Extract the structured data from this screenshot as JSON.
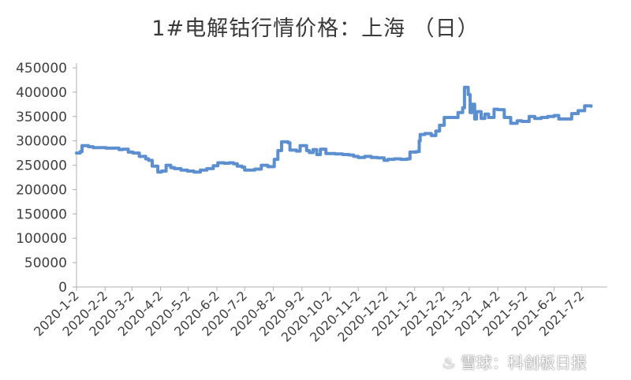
{
  "chart_data": {
    "type": "line",
    "title": "1#电解钴行情价格：上海 （日）",
    "xlabel": "",
    "ylabel": "",
    "ylim": [
      0,
      450000
    ],
    "yticks": [
      "0",
      "50000",
      "100000",
      "150000",
      "200000",
      "250000",
      "300000",
      "350000",
      "400000",
      "450000"
    ],
    "xticks": [
      "2020-1-2",
      "2020-2-2",
      "2020-3-2",
      "2020-4-2",
      "2020-5-2",
      "2020-6-2",
      "2020-7-2",
      "2020-8-2",
      "2020-9-2",
      "2020-10-2",
      "2020-11-2",
      "2020-12-2",
      "2021-1-2",
      "2021-2-2",
      "2021-3-2",
      "2021-4-2",
      "2021-5-2",
      "2021-6-2",
      "2021-7-2"
    ],
    "grid": false,
    "legend": "none",
    "line_color": "#5b8fd0",
    "series": [
      {
        "points": [
          [
            "2020-01-02",
            275000
          ],
          [
            "2020-01-06",
            278000
          ],
          [
            "2020-01-08",
            290000
          ],
          [
            "2020-01-15",
            288000
          ],
          [
            "2020-01-20",
            286000
          ],
          [
            "2020-02-03",
            285000
          ],
          [
            "2020-02-17",
            282000
          ],
          [
            "2020-02-21",
            283000
          ],
          [
            "2020-02-27",
            277000
          ],
          [
            "2020-03-03",
            275000
          ],
          [
            "2020-03-10",
            268000
          ],
          [
            "2020-03-17",
            263000
          ],
          [
            "2020-03-20",
            260000
          ],
          [
            "2020-03-24",
            248000
          ],
          [
            "2020-03-30",
            236000
          ],
          [
            "2020-04-03",
            238000
          ],
          [
            "2020-04-08",
            250000
          ],
          [
            "2020-04-13",
            245000
          ],
          [
            "2020-04-17",
            243000
          ],
          [
            "2020-04-24",
            240000
          ],
          [
            "2020-05-01",
            238000
          ],
          [
            "2020-05-08",
            236000
          ],
          [
            "2020-05-15",
            240000
          ],
          [
            "2020-05-22",
            243000
          ],
          [
            "2020-05-29",
            249000
          ],
          [
            "2020-06-03",
            255000
          ],
          [
            "2020-06-10",
            254000
          ],
          [
            "2020-06-15",
            255000
          ],
          [
            "2020-06-20",
            253000
          ],
          [
            "2020-06-24",
            248000
          ],
          [
            "2020-06-29",
            246000
          ],
          [
            "2020-07-02",
            240000
          ],
          [
            "2020-07-09",
            240000
          ],
          [
            "2020-07-13",
            242000
          ],
          [
            "2020-07-20",
            250000
          ],
          [
            "2020-07-27",
            247000
          ],
          [
            "2020-08-03",
            262000
          ],
          [
            "2020-08-07",
            280000
          ],
          [
            "2020-08-11",
            298000
          ],
          [
            "2020-08-18",
            296000
          ],
          [
            "2020-08-20",
            281000
          ],
          [
            "2020-08-27",
            279000
          ],
          [
            "2020-08-31",
            290000
          ],
          [
            "2020-09-07",
            280000
          ],
          [
            "2020-09-10",
            276000
          ],
          [
            "2020-09-14",
            282000
          ],
          [
            "2020-09-18",
            272000
          ],
          [
            "2020-09-22",
            283000
          ],
          [
            "2020-09-28",
            274000
          ],
          [
            "2020-10-08",
            273000
          ],
          [
            "2020-10-16",
            272000
          ],
          [
            "2020-10-23",
            271000
          ],
          [
            "2020-10-28",
            268000
          ],
          [
            "2020-11-02",
            266000
          ],
          [
            "2020-11-09",
            268000
          ],
          [
            "2020-11-16",
            266000
          ],
          [
            "2020-11-23",
            265000
          ],
          [
            "2020-11-30",
            260000
          ],
          [
            "2020-12-04",
            262000
          ],
          [
            "2020-12-11",
            263000
          ],
          [
            "2020-12-18",
            262000
          ],
          [
            "2020-12-25",
            263000
          ],
          [
            "2020-12-28",
            277000
          ],
          [
            "2021-01-04",
            278000
          ],
          [
            "2021-01-07",
            300000
          ],
          [
            "2021-01-08",
            313000
          ],
          [
            "2021-01-13",
            315000
          ],
          [
            "2021-01-20",
            311000
          ],
          [
            "2021-01-25",
            320000
          ],
          [
            "2021-01-29",
            332000
          ],
          [
            "2021-02-03",
            348000
          ],
          [
            "2021-02-09",
            348000
          ],
          [
            "2021-02-18",
            358000
          ],
          [
            "2021-02-23",
            368000
          ],
          [
            "2021-02-25",
            410000
          ],
          [
            "2021-03-01",
            395000
          ],
          [
            "2021-03-03",
            358000
          ],
          [
            "2021-03-05",
            375000
          ],
          [
            "2021-03-08",
            345000
          ],
          [
            "2021-03-10",
            360000
          ],
          [
            "2021-03-15",
            346000
          ],
          [
            "2021-03-19",
            355000
          ],
          [
            "2021-03-23",
            348000
          ],
          [
            "2021-03-29",
            365000
          ],
          [
            "2021-04-02",
            364000
          ],
          [
            "2021-04-09",
            348000
          ],
          [
            "2021-04-16",
            336000
          ],
          [
            "2021-04-23",
            341000
          ],
          [
            "2021-04-28",
            340000
          ],
          [
            "2021-05-06",
            350000
          ],
          [
            "2021-05-12",
            346000
          ],
          [
            "2021-05-19",
            348000
          ],
          [
            "2021-05-26",
            350000
          ],
          [
            "2021-06-02",
            352000
          ],
          [
            "2021-06-07",
            345000
          ],
          [
            "2021-06-14",
            345000
          ],
          [
            "2021-06-21",
            356000
          ],
          [
            "2021-06-28",
            362000
          ],
          [
            "2021-07-05",
            372000
          ],
          [
            "2021-07-12",
            371000
          ]
        ]
      }
    ]
  },
  "watermark": {
    "logo": "♨",
    "text": "雪球：科创板日报"
  }
}
